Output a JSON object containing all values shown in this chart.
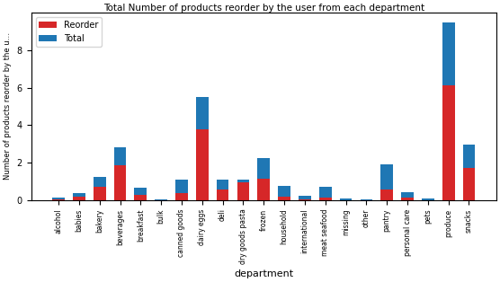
{
  "categories": [
    "alcohol",
    "babies",
    "bakery",
    "beverages",
    "breakfast",
    "bulk",
    "canned goods",
    "dairy eggs",
    "deli",
    "dry goods pasta",
    "frozen",
    "household",
    "international",
    "meat seafood",
    "missing",
    "other",
    "pantry",
    "personal care",
    "pets",
    "produce",
    "snacks"
  ],
  "total": [
    0.15,
    0.35,
    1.25,
    2.8,
    0.65,
    0.02,
    1.1,
    5.5,
    1.1,
    0.95,
    2.25,
    0.75,
    0.22,
    0.7,
    0.08,
    0.05,
    1.9,
    0.42,
    0.1,
    9.5,
    2.95
  ],
  "reorder": [
    0.05,
    0.2,
    0.7,
    1.85,
    0.25,
    0.0,
    0.35,
    3.75,
    0.55,
    1.1,
    1.15,
    0.2,
    0.05,
    0.15,
    0.0,
    0.0,
    0.55,
    0.12,
    0.0,
    6.1,
    1.7
  ],
  "total_color": "#1f77b4",
  "reorder_color": "#d62728",
  "title": "Total Number of products reorder by the user from each department",
  "xlabel": "department",
  "ylabel": "Number of products reorder by the u",
  "ylim": [
    0,
    10
  ],
  "yticks": [
    0,
    2,
    4,
    6,
    8
  ]
}
